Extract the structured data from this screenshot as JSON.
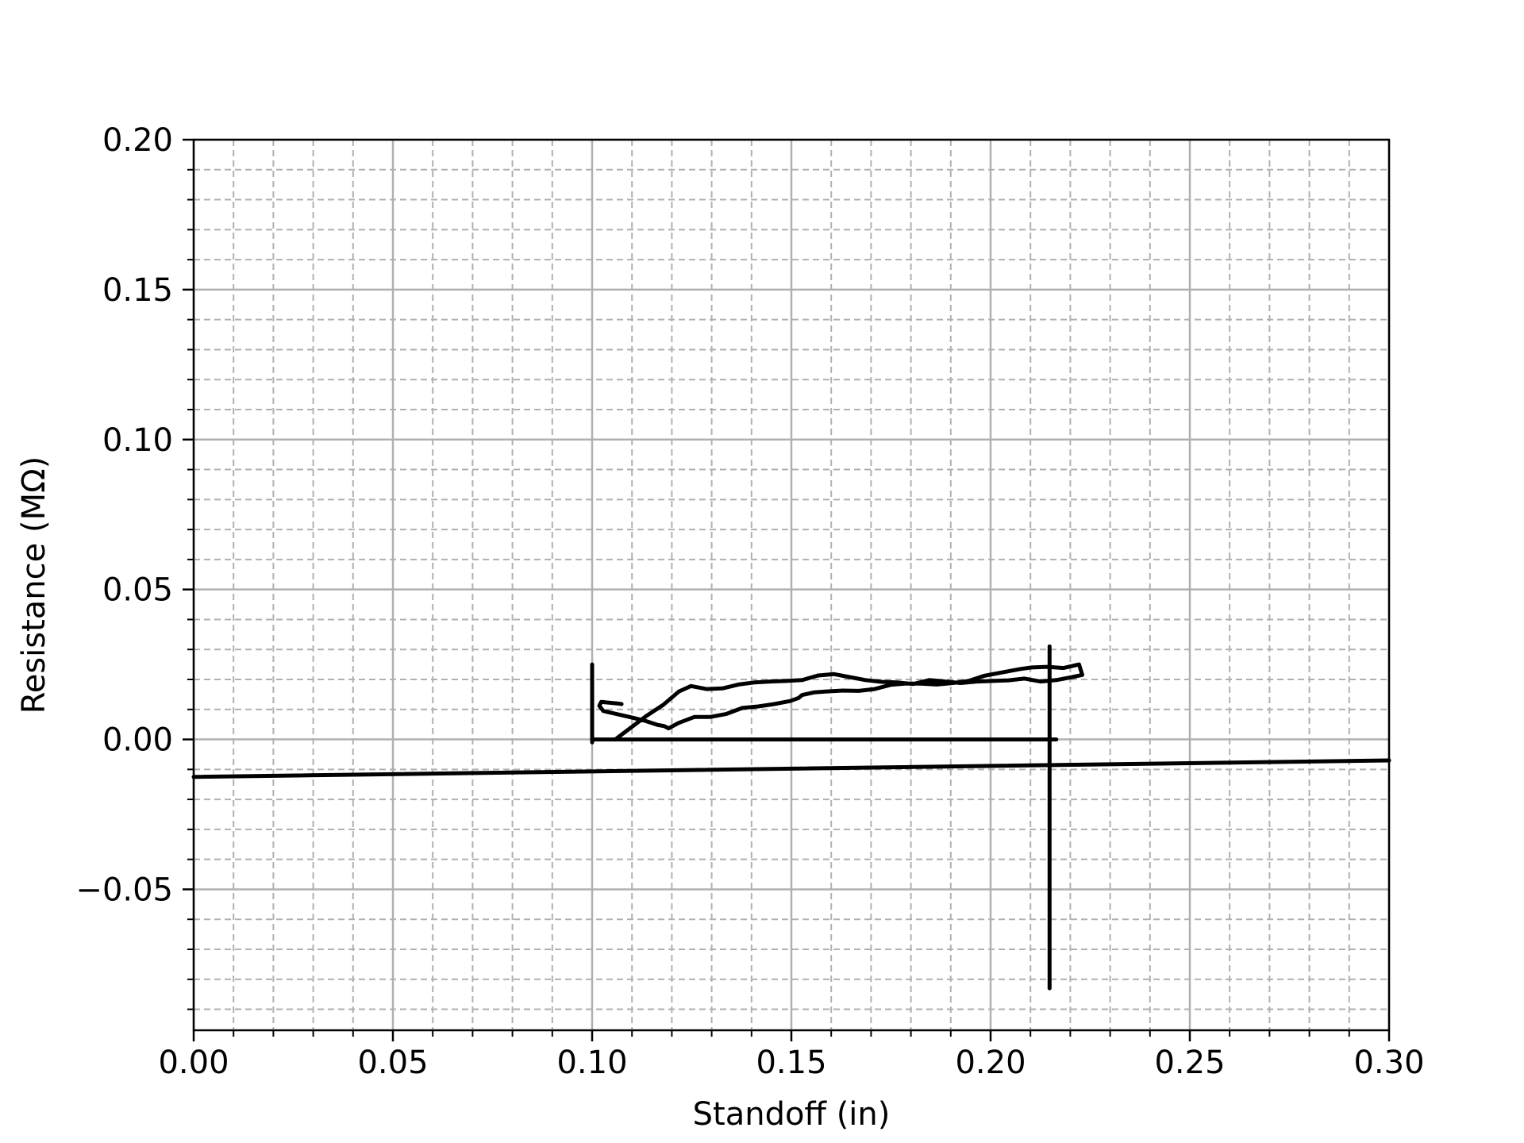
{
  "chart_data": {
    "type": "line",
    "title": "",
    "xlabel": "Standoff (in)",
    "ylabel": "Resistance (MΩ)",
    "xlim": [
      0.0,
      0.3
    ],
    "ylim": [
      -0.097,
      0.2
    ],
    "x_ticks": [
      0.0,
      0.05,
      0.1,
      0.15,
      0.2,
      0.25,
      0.3
    ],
    "x_tick_labels": [
      "0.00",
      "0.05",
      "0.10",
      "0.15",
      "0.20",
      "0.25",
      "0.30"
    ],
    "x_minor_step": 0.01,
    "y_ticks": [
      -0.05,
      0.0,
      0.05,
      0.1,
      0.15,
      0.2
    ],
    "y_tick_labels": [
      "−0.05",
      "0.00",
      "0.05",
      "0.10",
      "0.15",
      "0.20"
    ],
    "y_minor_step": 0.01,
    "grid": {
      "major": "solid",
      "minor": "dashed"
    },
    "line_color": "#000000",
    "major_grid_color": "#b0b0b0",
    "minor_grid_color": "#b0b0b0",
    "series": [
      {
        "x": [
          0.1,
          0.1,
          0.1,
          0.215,
          0.2165
        ],
        "y": [
          0.025,
          -0.001,
          0.0,
          0.0,
          0.0
        ]
      },
      {
        "x": [
          0.2148,
          0.2148
        ],
        "y": [
          0.031,
          -0.083
        ]
      },
      {
        "x": [
          0.0,
          0.3
        ],
        "y": [
          -0.0125,
          -0.007
        ]
      },
      {
        "x": [
          0.1058,
          0.1098,
          0.1138,
          0.1178,
          0.1218,
          0.1248,
          0.1287,
          0.1327,
          0.1367,
          0.1407,
          0.1447,
          0.1487,
          0.1527,
          0.1566,
          0.1606,
          0.1646,
          0.1686,
          0.1726,
          0.1766,
          0.1806,
          0.1846,
          0.1886,
          0.1925,
          0.1965,
          0.2005,
          0.2045,
          0.2085,
          0.2125,
          0.2165,
          0.2205,
          0.223,
          0.2222,
          0.2183,
          0.2143,
          0.2103,
          0.2075,
          0.2063,
          0.2023,
          0.1983,
          0.1945,
          0.1905,
          0.1865,
          0.1825,
          0.1785,
          0.1749,
          0.1709,
          0.1669,
          0.1629,
          0.1589,
          0.1558,
          0.1527,
          0.1518,
          0.1497,
          0.1457,
          0.1417,
          0.1377,
          0.1337,
          0.1297,
          0.1257,
          0.1217,
          0.1192,
          0.118,
          0.1165,
          0.1133,
          0.1093,
          0.1028,
          0.1018,
          0.1023,
          0.1063,
          0.1074
        ],
        "y": [
          0.0,
          0.004,
          0.008,
          0.0115,
          0.016,
          0.0178,
          0.0168,
          0.017,
          0.0183,
          0.019,
          0.0193,
          0.0195,
          0.0198,
          0.0213,
          0.0218,
          0.0208,
          0.0198,
          0.0192,
          0.019,
          0.0185,
          0.0198,
          0.0193,
          0.0188,
          0.0193,
          0.0195,
          0.0197,
          0.0203,
          0.0193,
          0.0198,
          0.0208,
          0.0215,
          0.025,
          0.0238,
          0.0242,
          0.024,
          0.0235,
          0.0232,
          0.0222,
          0.0212,
          0.0195,
          0.0188,
          0.0183,
          0.0186,
          0.0186,
          0.0182,
          0.0168,
          0.0162,
          0.0163,
          0.016,
          0.0157,
          0.0148,
          0.0138,
          0.0128,
          0.0118,
          0.011,
          0.0105,
          0.0085,
          0.0075,
          0.0075,
          0.0055,
          0.0037,
          0.0045,
          0.0048,
          0.0062,
          0.0075,
          0.0095,
          0.0112,
          0.0125,
          0.012,
          0.0118
        ]
      }
    ]
  }
}
